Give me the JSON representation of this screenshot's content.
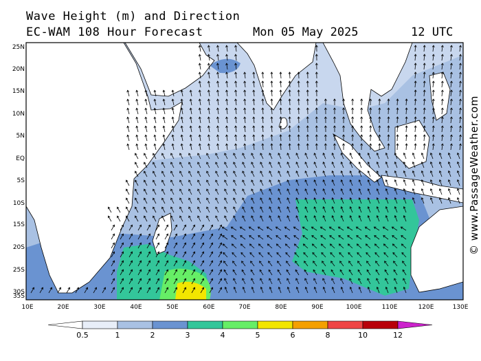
{
  "header": {
    "line1": "Wave Height (m) and Direction",
    "line2": "EC-WAM 108 Hour Forecast",
    "date": "Mon 05 May 2025",
    "time": "12 UTC"
  },
  "credit": "© www.PassageWeather.com",
  "axes": {
    "lat_labels": [
      "25N",
      "20N",
      "15N",
      "10N",
      "5N",
      "EQ",
      "5S",
      "10S",
      "15S",
      "20S",
      "25S",
      "30S",
      "35S"
    ],
    "lon_labels": [
      "10E",
      "20E",
      "30E",
      "40E",
      "50E",
      "60E",
      "70E",
      "80E",
      "90E",
      "100E",
      "110E",
      "120E",
      "130E"
    ]
  },
  "colorbar": {
    "labels": [
      "0.5",
      "1",
      "2",
      "3",
      "4",
      "5",
      "6",
      "8",
      "10",
      "12"
    ],
    "colors": [
      "#e8eef8",
      "#a9c1e3",
      "#6a93d1",
      "#33c69a",
      "#66ee66",
      "#f2e600",
      "#f5a000",
      "#ef4545",
      "#b8000a",
      "#cc22cc"
    ]
  },
  "land_color": "#ffffff",
  "sea_base_color": "#c8d7ee"
}
